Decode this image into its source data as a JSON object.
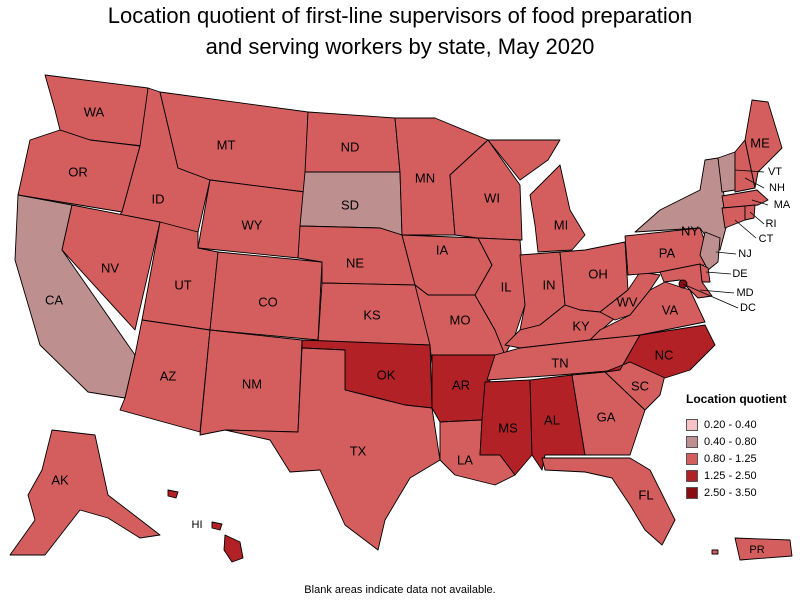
{
  "title_line1": "Location quotient of first-line supervisors of food preparation",
  "title_line2": "and serving workers by state, May 2020",
  "legend": {
    "title": "Location quotient",
    "classes": [
      {
        "range": "0.20 - 0.40",
        "color": "#f6c2c4"
      },
      {
        "range": "0.40 - 0.80",
        "color": "#bd8f8e"
      },
      {
        "range": "0.80 - 1.25",
        "color": "#d45e5e"
      },
      {
        "range": "1.25 - 2.50",
        "color": "#b22126"
      },
      {
        "range": "2.50 - 3.50",
        "color": "#8b0b13"
      }
    ]
  },
  "footnote": "Blank areas indicate data not available.",
  "states": {
    "WA": {
      "label": "WA",
      "class": 2
    },
    "OR": {
      "label": "OR",
      "class": 2
    },
    "CA": {
      "label": "CA",
      "class": 1
    },
    "ID": {
      "label": "ID",
      "class": 2
    },
    "NV": {
      "label": "NV",
      "class": 2
    },
    "MT": {
      "label": "MT",
      "class": 2
    },
    "WY": {
      "label": "WY",
      "class": 2
    },
    "UT": {
      "label": "UT",
      "class": 2
    },
    "AZ": {
      "label": "AZ",
      "class": 2
    },
    "CO": {
      "label": "CO",
      "class": 2
    },
    "NM": {
      "label": "NM",
      "class": 2
    },
    "ND": {
      "label": "ND",
      "class": 2
    },
    "SD": {
      "label": "SD",
      "class": 1
    },
    "NE": {
      "label": "NE",
      "class": 2
    },
    "KS": {
      "label": "KS",
      "class": 2
    },
    "OK": {
      "label": "OK",
      "class": 3
    },
    "TX": {
      "label": "TX",
      "class": 2
    },
    "MN": {
      "label": "MN",
      "class": 2
    },
    "IA": {
      "label": "IA",
      "class": 2
    },
    "MO": {
      "label": "MO",
      "class": 2
    },
    "AR": {
      "label": "AR",
      "class": 3
    },
    "LA": {
      "label": "LA",
      "class": 2
    },
    "WI": {
      "label": "WI",
      "class": 2
    },
    "IL": {
      "label": "IL",
      "class": 2
    },
    "MI": {
      "label": "MI",
      "class": 2
    },
    "IN": {
      "label": "IN",
      "class": 2
    },
    "OH": {
      "label": "OH",
      "class": 2
    },
    "KY": {
      "label": "KY",
      "class": 2
    },
    "TN": {
      "label": "TN",
      "class": 2
    },
    "MS": {
      "label": "MS",
      "class": 3
    },
    "AL": {
      "label": "AL",
      "class": 3
    },
    "GA": {
      "label": "GA",
      "class": 2
    },
    "FL": {
      "label": "FL",
      "class": 2
    },
    "SC": {
      "label": "SC",
      "class": 2
    },
    "NC": {
      "label": "NC",
      "class": 3
    },
    "VA": {
      "label": "VA",
      "class": 2
    },
    "WV": {
      "label": "WV",
      "class": 2
    },
    "PA": {
      "label": "PA",
      "class": 2
    },
    "NY": {
      "label": "NY",
      "class": 1
    },
    "VT": {
      "label": "VT",
      "class": 1
    },
    "NH": {
      "label": "NH",
      "class": 2
    },
    "ME": {
      "label": "ME",
      "class": 2
    },
    "MA": {
      "label": "MA",
      "class": 2
    },
    "RI": {
      "label": "RI",
      "class": 2
    },
    "CT": {
      "label": "CT",
      "class": 2
    },
    "NJ": {
      "label": "NJ",
      "class": 1
    },
    "DE": {
      "label": "DE",
      "class": 2
    },
    "MD": {
      "label": "MD",
      "class": 2
    },
    "DC": {
      "label": "DC",
      "class": 4
    },
    "AK": {
      "label": "AK",
      "class": 2
    },
    "HI": {
      "label": "HI",
      "class": 3
    },
    "PR": {
      "label": "PR",
      "class": 2
    }
  }
}
